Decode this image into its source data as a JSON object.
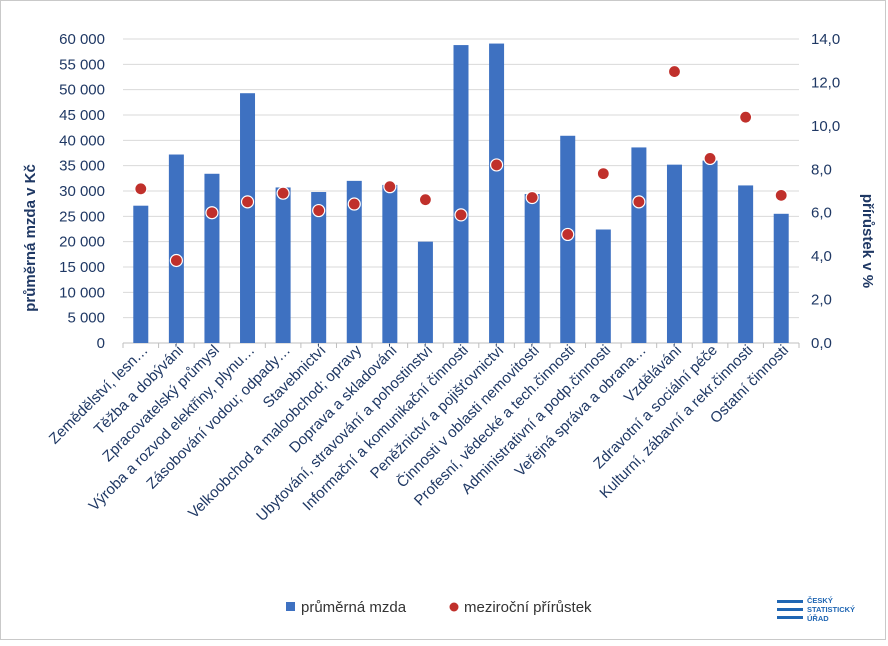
{
  "chart_data": {
    "type": "bar",
    "categories": [
      "Zemědělství, lesn…",
      "Těžba a dobývání",
      "Zpracovatelský průmysl",
      "Výroba a rozvod elektřiny, plynu…",
      "Zásobování vodou; odpady…",
      "Stavebnictví",
      "Velkoobchod a maloobchod; opravy",
      "Doprava a skladování",
      "Ubytování, stravování a pohostinství",
      "Informační a komunikační činnosti",
      "Peněžnictví a pojišťovnictví",
      "Činnosti v oblasti nemovitostí",
      "Profesní, vědecké a tech.činnosti",
      "Administrativní a podp.činnosti",
      "Veřejná správa a obrana…",
      "Vzdělávání",
      "Zdravotní a sociální péče",
      "Kulturní, zábavní a rekr.činnosti",
      "Ostatní činnosti"
    ],
    "series": [
      {
        "name": "průměrná mzda",
        "axis": "left",
        "color": "#3e71c1",
        "values": [
          27100,
          37200,
          33400,
          49300,
          30700,
          29800,
          32000,
          31200,
          20000,
          58800,
          59100,
          29400,
          40900,
          22400,
          38600,
          35200,
          36000,
          31100,
          25500
        ]
      },
      {
        "name": "meziroční přírůstek",
        "axis": "right",
        "color": "#c0302b",
        "values": [
          7.1,
          3.8,
          6.0,
          6.5,
          6.9,
          6.1,
          6.4,
          7.2,
          6.6,
          5.9,
          8.2,
          6.7,
          5.0,
          7.8,
          6.5,
          12.5,
          8.5,
          10.4,
          6.8
        ]
      }
    ],
    "ylabel": "průměrná mzda v Kč",
    "y2label": "přírůstek v %",
    "ylim": [
      0,
      60000
    ],
    "y2lim": [
      0,
      14
    ],
    "yticks": [
      "0",
      "5 000",
      "10 000",
      "15 000",
      "20 000",
      "25 000",
      "30 000",
      "35 000",
      "40 000",
      "45 000",
      "50 000",
      "55 000",
      "60 000"
    ],
    "y2ticks": [
      "0,0",
      "2,0",
      "4,0",
      "6,0",
      "8,0",
      "10,0",
      "12,0",
      "14,0"
    ],
    "grid": true,
    "legend_position": "bottom"
  },
  "logo": {
    "lines": [
      "ČESKÝ",
      "STATISTICKÝ",
      "ÚŘAD"
    ],
    "color": "#1f66b3"
  },
  "colors": {
    "axis_text": "#1f3864",
    "grid": "#d9d9d9"
  }
}
